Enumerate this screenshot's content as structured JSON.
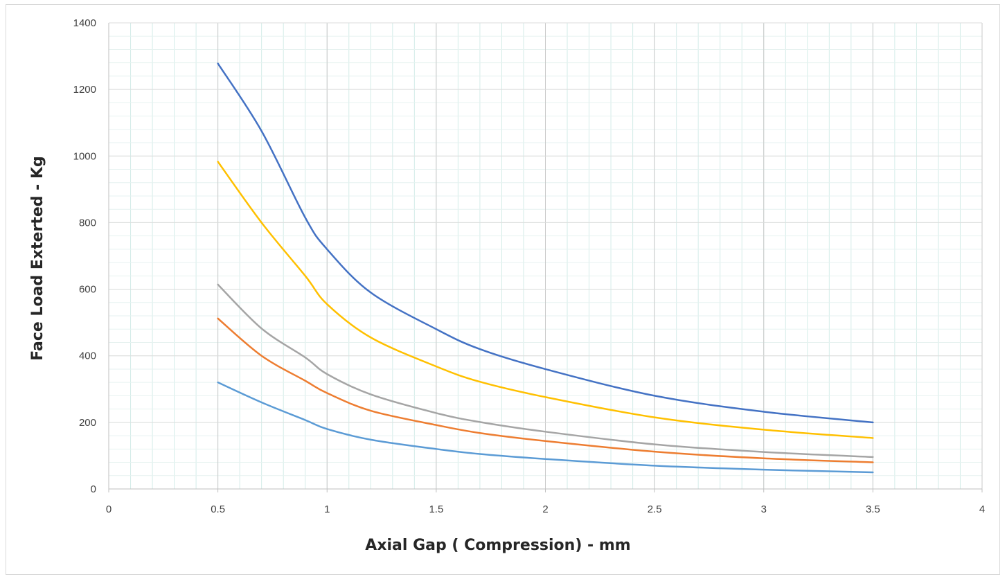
{
  "chart_data": {
    "type": "line",
    "title": "",
    "xlabel": "Axial Gap ( Compression) - mm",
    "ylabel": "Face Load Exterted - Kg",
    "xlim": [
      0,
      4
    ],
    "ylim": [
      0,
      1400
    ],
    "x_ticks": [
      "0",
      "0.5",
      "1",
      "1.5",
      "2",
      "2.5",
      "3",
      "3.5",
      "4"
    ],
    "y_ticks": [
      "0",
      "200",
      "400",
      "600",
      "800",
      "1000",
      "1200",
      "1400"
    ],
    "x_major_step": 0.5,
    "x_minor_step": 0.1,
    "y_major_step": 200,
    "y_minor_step": 40,
    "grid": true,
    "legend": "none",
    "x": [
      0.5,
      0.7,
      0.9,
      1.0,
      1.2,
      1.5,
      1.7,
      2.0,
      2.5,
      3.0,
      3.5
    ],
    "series": [
      {
        "color": "#4472c4",
        "values": [
          1278,
          1075,
          815,
          720,
          590,
          480,
          420,
          360,
          280,
          232,
          200
        ]
      },
      {
        "color": "#ffc000",
        "values": [
          983,
          800,
          640,
          555,
          455,
          368,
          322,
          276,
          215,
          178,
          153
        ]
      },
      {
        "color": "#a5a5a5",
        "values": [
          614,
          482,
          395,
          345,
          284,
          228,
          201,
          172,
          134,
          111,
          96
        ]
      },
      {
        "color": "#ed7d31",
        "values": [
          512,
          400,
          325,
          288,
          235,
          192,
          168,
          144,
          112,
          92,
          80
        ]
      },
      {
        "color": "#5b9bd5",
        "values": [
          320,
          260,
          207,
          180,
          148,
          120,
          105,
          90,
          70,
          58,
          50
        ]
      }
    ]
  }
}
